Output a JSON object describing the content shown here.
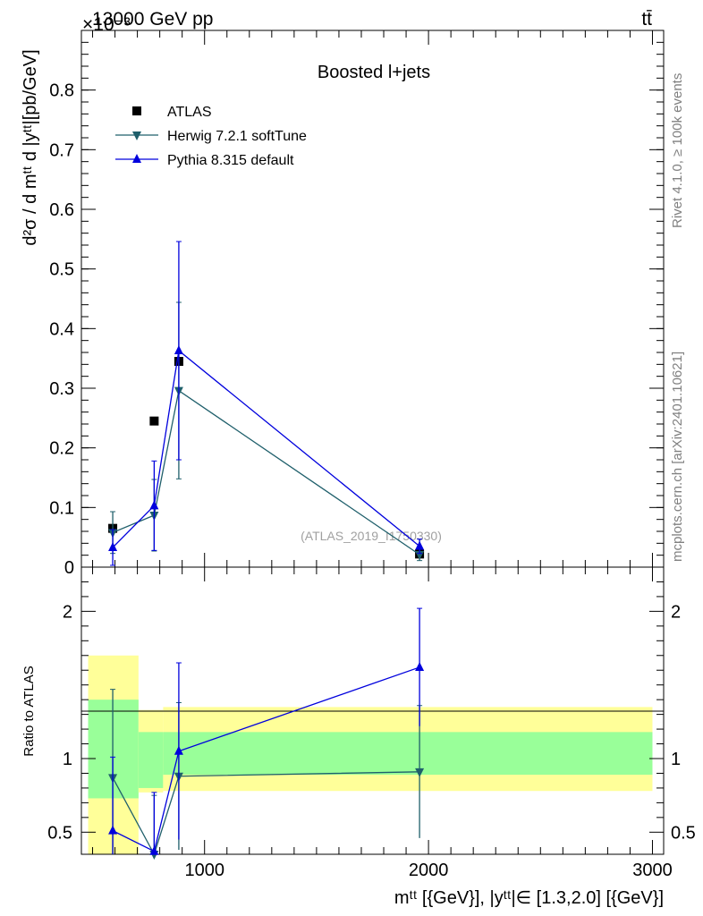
{
  "header": {
    "energy_label": "13000 GeV pp",
    "process_label": "tt̄",
    "exponent_label": "×10⁻³"
  },
  "side_labels": {
    "rivet": "Rivet 4.1.0, ≥ 100k events",
    "mcplots": "mcplots.cern.ch [arXiv:2401.10621]"
  },
  "chart_data": [
    {
      "panel": "main",
      "type": "scatter",
      "title": "Boosted l+jets",
      "watermark": "(ATLAS_2019_I1750330)",
      "ylabel": "d²σ / d mᵗᵗ d |yᵗᵗ|[pb/GeV]",
      "xlabel": "",
      "xlim": [
        450,
        3050
      ],
      "ylim": [
        0,
        0.0009
      ],
      "y_scale_note": "values in units of 1e-3",
      "ytick_labels": [
        "0",
        "0.1",
        "0.2",
        "0.3",
        "0.4",
        "0.5",
        "0.6",
        "0.7",
        "0.8"
      ],
      "ytick_values": [
        0,
        0.1,
        0.2,
        0.3,
        0.4,
        0.5,
        0.6,
        0.7,
        0.8
      ],
      "legend_position": "top-left",
      "series": [
        {
          "name": "ATLAS",
          "marker": "square",
          "color": "#000000",
          "x": [
            590,
            775,
            885,
            1960
          ],
          "y": [
            0.065,
            0.245,
            0.345,
            0.022
          ],
          "err": [
            0.0,
            0.0,
            0.0,
            0.0
          ],
          "line": false
        },
        {
          "name": "Herwig 7.2.1 softTune",
          "marker": "triangle-down",
          "color": "#1f5f6b",
          "x": [
            590,
            775,
            885,
            1960
          ],
          "y": [
            0.058,
            0.087,
            0.296,
            0.021
          ],
          "err": [
            0.035,
            0.06,
            0.148,
            0.01
          ],
          "line": true
        },
        {
          "name": "Pythia 8.315 default",
          "marker": "triangle-up",
          "color": "#0000dd",
          "x": [
            590,
            775,
            885,
            1960
          ],
          "y": [
            0.033,
            0.103,
            0.363,
            0.035
          ],
          "err": [
            0.03,
            0.075,
            0.183,
            0.012
          ],
          "line": true
        }
      ]
    },
    {
      "panel": "ratio",
      "type": "line",
      "ylabel": "Ratio to ATLAS",
      "xlabel": "mᵗᵗ [{GeV}], |yᵗᵗ|∈ [1.3,2.0] [{GeV}]",
      "xlim": [
        450,
        3050
      ],
      "ylim": [
        0.35,
        2.3
      ],
      "xtick_labels": [
        "1000",
        "2000",
        "3000"
      ],
      "xtick_values": [
        1000,
        2000,
        3000
      ],
      "ytick_labels": [
        "0.5",
        "1",
        "2"
      ],
      "ytick_values": [
        0.5,
        1,
        2
      ],
      "bands": [
        {
          "x0": 480,
          "x1": 705,
          "yellow": [
            0.35,
            1.7
          ],
          "green": [
            0.73,
            1.4
          ]
        },
        {
          "x0": 705,
          "x1": 815,
          "yellow": [
            0.77,
            1.33
          ],
          "green": [
            0.8,
            1.18
          ]
        },
        {
          "x0": 815,
          "x1": 3000,
          "yellow": [
            0.78,
            1.35
          ],
          "green": [
            0.89,
            1.18
          ]
        }
      ],
      "series": [
        {
          "name": "Herwig 7.2.1 softTune",
          "marker": "triangle-down",
          "color": "#1f5f6b",
          "x": [
            590,
            775,
            885,
            1960
          ],
          "y": [
            0.87,
            0.35,
            0.88,
            0.91
          ],
          "err": [
            0.6,
            0.4,
            0.5,
            0.45
          ]
        },
        {
          "name": "Pythia 8.315 default",
          "marker": "triangle-up",
          "color": "#0000dd",
          "x": [
            590,
            775,
            885,
            1960
          ],
          "y": [
            0.51,
            0.37,
            1.05,
            1.62
          ],
          "err": [
            0.5,
            0.4,
            0.6,
            0.4
          ]
        }
      ]
    }
  ]
}
